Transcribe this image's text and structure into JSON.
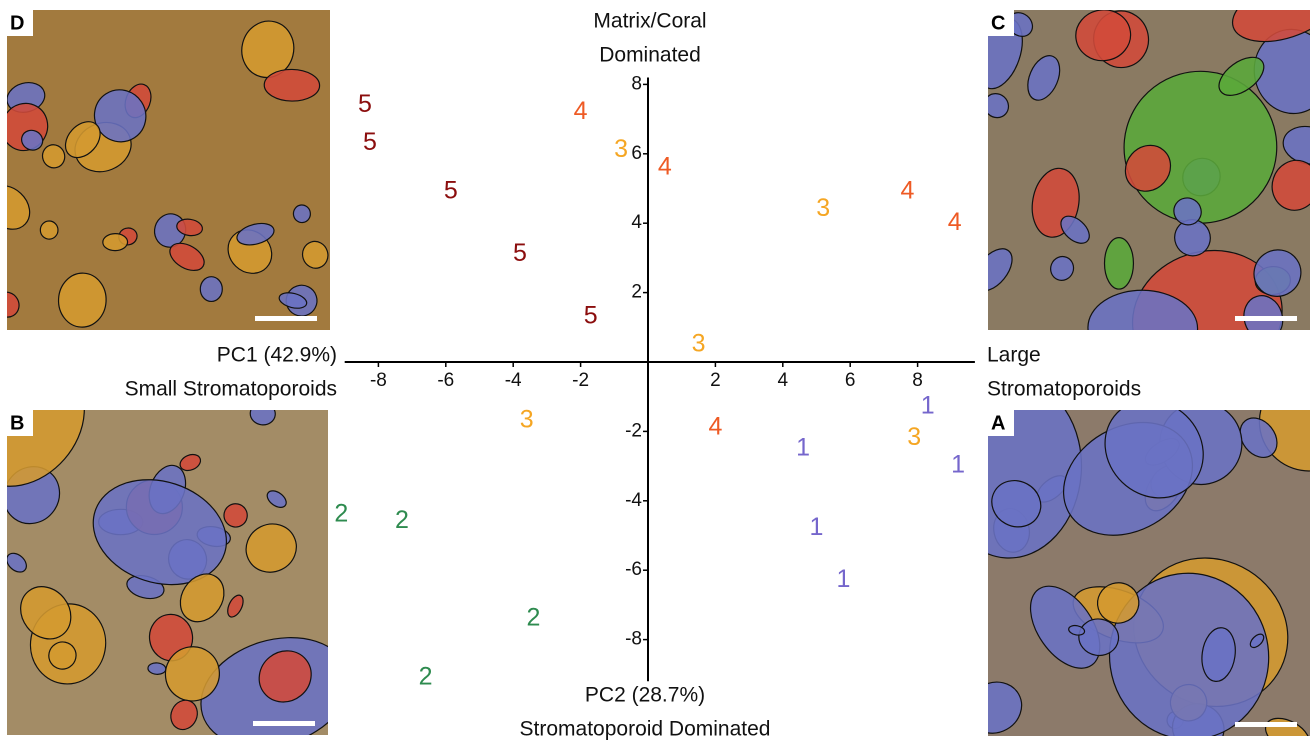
{
  "chart_data": {
    "type": "scatter",
    "top_label": [
      "Matrix/Coral",
      "Dominated"
    ],
    "bottom_label": [
      "PC2 (28.7%)",
      "Stromatoporoid Dominated"
    ],
    "left_label": [
      "PC1 (42.9%)",
      "Small Stromatoporoids"
    ],
    "right_label": [
      "Large",
      "Stromatoporoids"
    ],
    "xlim": [
      -9,
      9.7
    ],
    "ylim": [
      -9.2,
      8.2
    ],
    "xticks": [
      -8,
      -6,
      -4,
      -2,
      2,
      4,
      6,
      8
    ],
    "yticks": [
      -8,
      -6,
      -4,
      -2,
      2,
      4,
      6,
      8
    ],
    "series": [
      {
        "name": "1",
        "color": "#7566cc",
        "x": [
          8.3,
          4.6,
          9.2,
          5.0,
          5.8
        ],
        "y": [
          -1.3,
          -2.5,
          -3.0,
          -4.8,
          -6.3
        ]
      },
      {
        "name": "2",
        "color": "#2e8b4f",
        "x": [
          -9.1,
          -7.3,
          -3.4,
          -6.6
        ],
        "y": [
          -4.4,
          -4.6,
          -7.4,
          -9.1
        ]
      },
      {
        "name": "3",
        "color": "#f5a623",
        "x": [
          -0.8,
          5.2,
          1.5,
          -3.6,
          7.9
        ],
        "y": [
          6.1,
          4.4,
          0.5,
          -1.7,
          -2.2
        ]
      },
      {
        "name": "4",
        "color": "#ee5a24",
        "x": [
          -2.0,
          0.5,
          7.7,
          9.1,
          2.0
        ],
        "y": [
          7.2,
          5.6,
          4.9,
          4.0,
          -1.9
        ]
      },
      {
        "name": "5",
        "color": "#8b0d0d",
        "x": [
          -8.4,
          -8.25,
          -5.85,
          -3.8,
          -1.7
        ],
        "y": [
          7.4,
          6.3,
          4.9,
          3.1,
          1.3
        ]
      }
    ]
  },
  "panels": [
    {
      "label": "D"
    },
    {
      "label": "C"
    },
    {
      "label": "B"
    },
    {
      "label": "A"
    }
  ]
}
